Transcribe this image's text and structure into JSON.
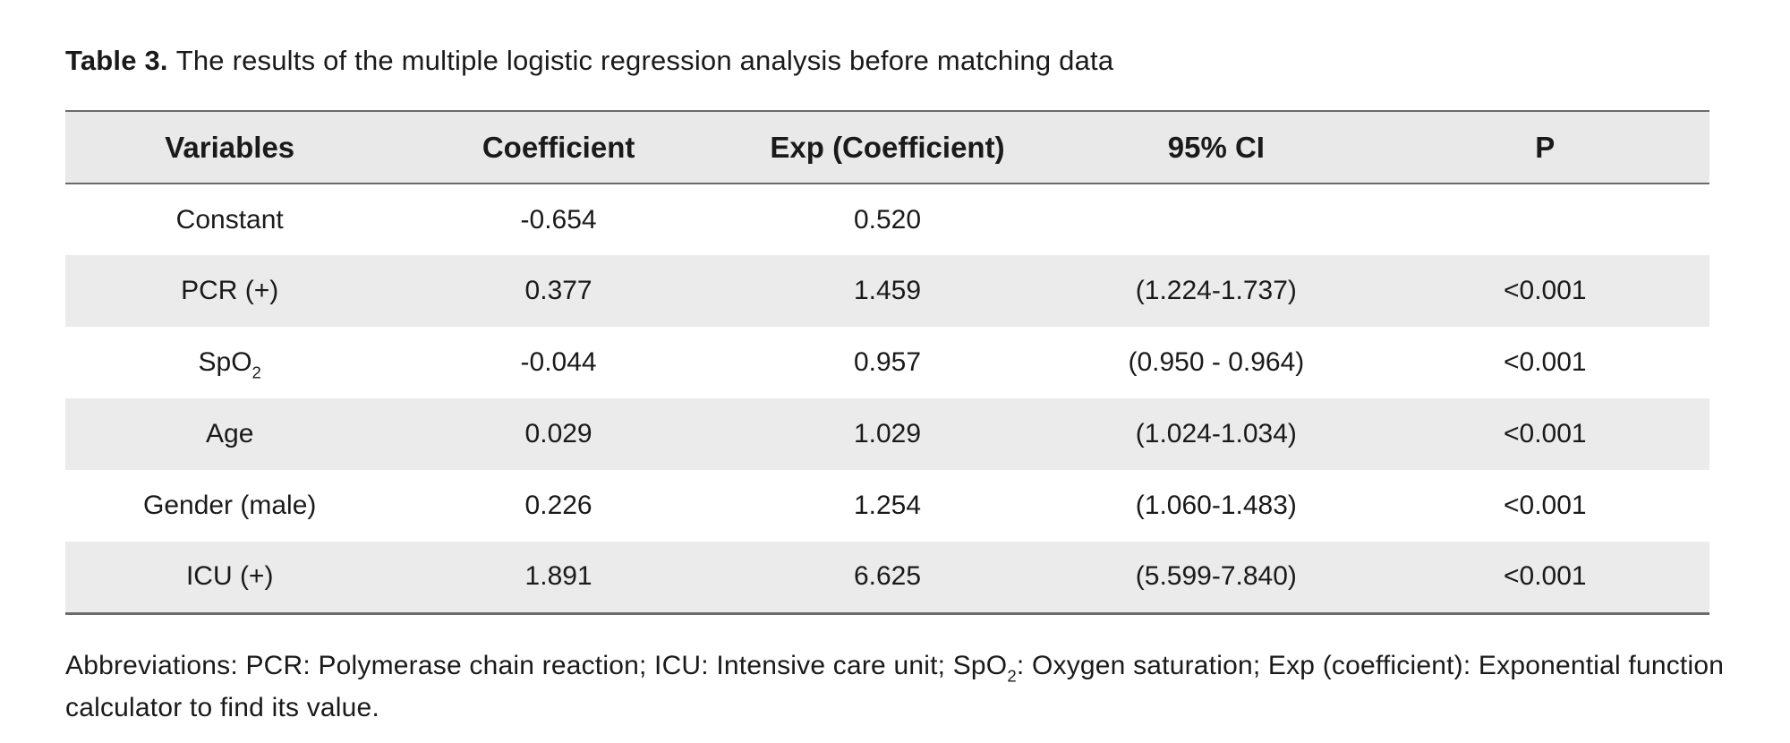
{
  "caption": {
    "label": "Table 3.",
    "text": "The results of the multiple logistic regression analysis before matching data"
  },
  "table": {
    "columns": [
      "Variables",
      "Coefficient",
      "Exp (Coefficient)",
      "95% CI",
      "P"
    ],
    "column_keys": [
      "variable",
      "coefficient",
      "exp_coefficient",
      "ci_95",
      "p_value"
    ],
    "rows": [
      [
        "Constant",
        "-0.654",
        "0.520",
        "",
        ""
      ],
      [
        "PCR (+)",
        "0.377",
        "1.459",
        "(1.224-1.737)",
        "<0.001"
      ],
      [
        "SpO~2~",
        "-0.044",
        "0.957",
        "(0.950 - 0.964)",
        "<0.001"
      ],
      [
        "Age",
        "0.029",
        "1.029",
        "(1.024-1.034)",
        "<0.001"
      ],
      [
        "Gender (male)",
        "0.226",
        "1.254",
        "(1.060-1.483)",
        "<0.001"
      ],
      [
        "ICU (+)",
        "1.891",
        "6.625",
        "(5.599-7.840)",
        "<0.001"
      ]
    ]
  },
  "footnote": {
    "lines": [
      "Abbreviations: PCR: Polymerase chain reaction; ICU: Intensive care unit; SpO~2~: Oxygen saturation; Exp (coefficient): Exponential function",
      "calculator to find its value."
    ]
  },
  "colors": {
    "header_bg": "#e9e9e9",
    "stripe_bg": "#ebebeb",
    "border": "#6b6b6b",
    "text": "#1a1a1a"
  }
}
